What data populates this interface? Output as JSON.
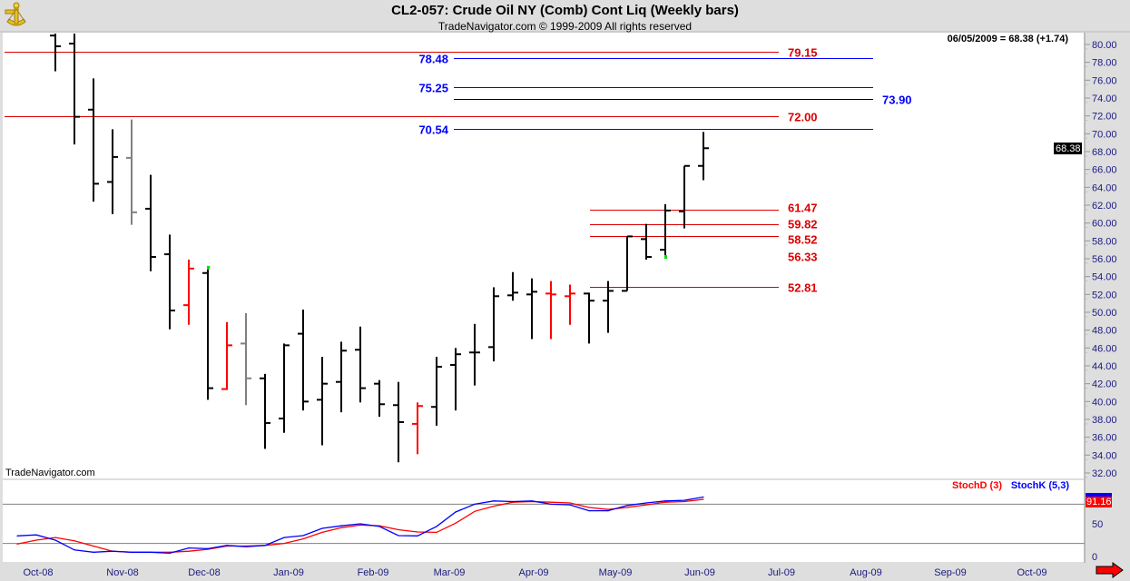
{
  "header": {
    "title": "CL2-057:  Crude Oil NY (Comb) Cont Liq  (Weekly bars)",
    "subtitle": "TradeNavigator.com © 1999-2009 All rights reserved",
    "logo_icon": "sextant-icon"
  },
  "readout": "06/05/2009 = 68.38 (+1.74)",
  "last_price_tag": "68.38",
  "watermark": "TradeNavigator.com",
  "nav_arrow_icon": "right-arrow-icon",
  "colors": {
    "up": "#000000",
    "down": "#ff0000",
    "neutral": "#808080",
    "blue": "#0000ff",
    "red": "#dd0000"
  },
  "chart_data": [
    {
      "type": "bar",
      "subtype": "ohlc",
      "title": "CL2-057:  Crude Oil NY (Comb) Cont Liq  (Weekly bars)",
      "ylim": [
        32,
        80
      ],
      "y_ticks": [
        "32.00",
        "34.00",
        "36.00",
        "38.00",
        "40.00",
        "42.00",
        "44.00",
        "46.00",
        "48.00",
        "50.00",
        "52.00",
        "54.00",
        "56.00",
        "58.00",
        "60.00",
        "62.00",
        "64.00",
        "66.00",
        "68.00",
        "70.00",
        "72.00",
        "74.00",
        "76.00",
        "78.00",
        "80.00"
      ],
      "x_ticks": [
        {
          "label": "Oct-08",
          "date": "2008-10-01"
        },
        {
          "label": "Nov-08",
          "date": "2008-11-01"
        },
        {
          "label": "Dec-08",
          "date": "2008-12-01"
        },
        {
          "label": "Jan-09",
          "date": "2009-01-01"
        },
        {
          "label": "Feb-09",
          "date": "2009-02-01"
        },
        {
          "label": "Mar-09",
          "date": "2009-03-01"
        },
        {
          "label": "Apr-09",
          "date": "2009-04-01"
        },
        {
          "label": "May-09",
          "date": "2009-05-01"
        },
        {
          "label": "Jun-09",
          "date": "2009-06-01"
        },
        {
          "label": "Jul-09",
          "date": "2009-07-01"
        },
        {
          "label": "Aug-09",
          "date": "2009-08-01"
        },
        {
          "label": "Sep-09",
          "date": "2009-09-01"
        },
        {
          "label": "Oct-09",
          "date": "2009-10-01"
        }
      ],
      "bars": [
        {
          "date": "2008-10-10",
          "o": 81.0,
          "h": 81.5,
          "l": 77.0,
          "c": 79.8,
          "color": "up"
        },
        {
          "date": "2008-10-17",
          "o": 80.1,
          "h": 81.5,
          "l": 68.8,
          "c": 71.9,
          "color": "up"
        },
        {
          "date": "2008-10-24",
          "o": 72.7,
          "h": 76.2,
          "l": 62.4,
          "c": 64.4,
          "color": "up"
        },
        {
          "date": "2008-10-31",
          "o": 64.6,
          "h": 70.5,
          "l": 61.0,
          "c": 67.4,
          "color": "up"
        },
        {
          "date": "2008-11-07",
          "o": 67.3,
          "h": 71.6,
          "l": 59.8,
          "c": 61.2,
          "color": "neutral"
        },
        {
          "date": "2008-11-14",
          "o": 61.6,
          "h": 65.4,
          "l": 54.6,
          "c": 56.2,
          "color": "up"
        },
        {
          "date": "2008-11-21",
          "o": 56.5,
          "h": 58.7,
          "l": 48.1,
          "c": 50.2,
          "color": "up"
        },
        {
          "date": "2008-11-28",
          "o": 50.8,
          "h": 55.9,
          "l": 48.6,
          "c": 54.9,
          "color": "down"
        },
        {
          "date": "2008-12-05",
          "o": 54.4,
          "h": 54.8,
          "l": 40.2,
          "c": 41.5,
          "color": "up",
          "marker": "high"
        },
        {
          "date": "2008-12-12",
          "o": 41.4,
          "h": 48.9,
          "l": 41.3,
          "c": 46.3,
          "color": "down"
        },
        {
          "date": "2008-12-19",
          "o": 46.5,
          "h": 49.9,
          "l": 39.6,
          "c": 42.6,
          "color": "neutral"
        },
        {
          "date": "2008-12-26",
          "o": 42.6,
          "h": 43.1,
          "l": 34.7,
          "c": 37.6,
          "color": "up"
        },
        {
          "date": "2009-01-02",
          "o": 38.1,
          "h": 46.5,
          "l": 36.5,
          "c": 46.3,
          "color": "up"
        },
        {
          "date": "2009-01-09",
          "o": 47.6,
          "h": 50.3,
          "l": 39.0,
          "c": 40.0,
          "color": "up"
        },
        {
          "date": "2009-01-16",
          "o": 40.2,
          "h": 45.0,
          "l": 35.1,
          "c": 42.0,
          "color": "up"
        },
        {
          "date": "2009-01-23",
          "o": 42.2,
          "h": 46.7,
          "l": 38.8,
          "c": 45.7,
          "color": "up"
        },
        {
          "date": "2009-01-30",
          "o": 45.8,
          "h": 48.4,
          "l": 39.9,
          "c": 41.5,
          "color": "up"
        },
        {
          "date": "2009-02-06",
          "o": 42.0,
          "h": 42.4,
          "l": 38.3,
          "c": 39.7,
          "color": "up"
        },
        {
          "date": "2009-02-13",
          "o": 39.6,
          "h": 42.2,
          "l": 33.2,
          "c": 37.7,
          "color": "up"
        },
        {
          "date": "2009-02-20",
          "o": 37.5,
          "h": 39.9,
          "l": 34.1,
          "c": 39.5,
          "color": "down"
        },
        {
          "date": "2009-02-27",
          "o": 39.4,
          "h": 45.0,
          "l": 37.3,
          "c": 43.9,
          "color": "up"
        },
        {
          "date": "2009-03-06",
          "o": 44.1,
          "h": 46.0,
          "l": 39.0,
          "c": 45.3,
          "color": "up"
        },
        {
          "date": "2009-03-13",
          "o": 45.5,
          "h": 48.7,
          "l": 41.8,
          "c": 45.5,
          "color": "up"
        },
        {
          "date": "2009-03-20",
          "o": 46.1,
          "h": 52.8,
          "l": 44.5,
          "c": 51.8,
          "color": "up"
        },
        {
          "date": "2009-03-27",
          "o": 51.9,
          "h": 54.5,
          "l": 51.3,
          "c": 52.2,
          "color": "up"
        },
        {
          "date": "2009-04-03",
          "o": 52.0,
          "h": 53.8,
          "l": 47.0,
          "c": 52.3,
          "color": "up"
        },
        {
          "date": "2009-04-10",
          "o": 52.1,
          "h": 53.5,
          "l": 47.0,
          "c": 52.0,
          "color": "down"
        },
        {
          "date": "2009-04-17",
          "o": 51.8,
          "h": 53.1,
          "l": 48.6,
          "c": 52.1,
          "color": "down"
        },
        {
          "date": "2009-04-24",
          "o": 52.1,
          "h": 52.2,
          "l": 46.5,
          "c": 51.3,
          "color": "up"
        },
        {
          "date": "2009-05-01",
          "o": 51.3,
          "h": 53.5,
          "l": 47.7,
          "c": 52.4,
          "color": "up"
        },
        {
          "date": "2009-05-08",
          "o": 52.4,
          "h": 58.5,
          "l": 52.4,
          "c": 58.5,
          "color": "up"
        },
        {
          "date": "2009-05-15",
          "o": 58.2,
          "h": 59.9,
          "l": 55.9,
          "c": 56.2,
          "color": "up"
        },
        {
          "date": "2009-05-22",
          "o": 57.0,
          "h": 62.1,
          "l": 56.4,
          "c": 61.4,
          "color": "up",
          "marker": "low"
        },
        {
          "date": "2009-05-29",
          "o": 61.3,
          "h": 66.4,
          "l": 59.4,
          "c": 66.4,
          "color": "up"
        },
        {
          "date": "2009-06-05",
          "o": 66.4,
          "h": 70.2,
          "l": 64.8,
          "c": 68.38,
          "color": "up"
        }
      ],
      "levels": [
        {
          "value": "79.15",
          "line": "red",
          "label": "red",
          "group": "long-right"
        },
        {
          "value": "78.48",
          "line": "blue",
          "label": "blue",
          "group": "mid-left"
        },
        {
          "value": "75.25",
          "line": "blue",
          "label": "blue",
          "group": "mid-left"
        },
        {
          "value": "73.90",
          "line": "black",
          "label": "blue",
          "group": "mid-right"
        },
        {
          "value": "72.00",
          "line": "red",
          "label": "red",
          "group": "long-right"
        },
        {
          "value": "70.54",
          "line": "blue",
          "label": "blue",
          "group": "mid-left"
        },
        {
          "value": "61.47",
          "line": "red",
          "label": "red",
          "group": "short-right"
        },
        {
          "value": "59.82",
          "line": "red",
          "label": "red",
          "group": "short-right"
        },
        {
          "value": "58.52",
          "line": "red",
          "label": "red",
          "group": "short-right"
        },
        {
          "value": "56.33",
          "line": "none",
          "label": "red",
          "group": "short-right"
        },
        {
          "value": "52.81",
          "line": "red",
          "label": "red",
          "group": "short-right"
        }
      ]
    },
    {
      "type": "line",
      "ylim": [
        0,
        100
      ],
      "y_ticks": [
        "0",
        "50"
      ],
      "reference_lines": [
        20,
        80
      ],
      "last_value_tag": "91.16",
      "start_date": "2008-09-26",
      "series": [
        {
          "name": "StochD (3)",
          "color": "#ff0000",
          "values": [
            19,
            25,
            29,
            24,
            16,
            8,
            6.5,
            6.5,
            6.5,
            8,
            11,
            16,
            16,
            17,
            20,
            27,
            37,
            44,
            48,
            47,
            41,
            37.5,
            37,
            51,
            69,
            77,
            83,
            84,
            83,
            82,
            75,
            72,
            75,
            79,
            83,
            84,
            87.5
          ]
        },
        {
          "name": "StochK (5,3)",
          "color": "#0000ff",
          "values": [
            31.5,
            33,
            25,
            10,
            6.5,
            8,
            6.5,
            6.5,
            5,
            13,
            12,
            17,
            15,
            17,
            29,
            32,
            43,
            47,
            50,
            46,
            32,
            31.5,
            46,
            68,
            80,
            85,
            84,
            85,
            80,
            79,
            70,
            70,
            78,
            82,
            85,
            86,
            91
          ]
        }
      ]
    }
  ]
}
